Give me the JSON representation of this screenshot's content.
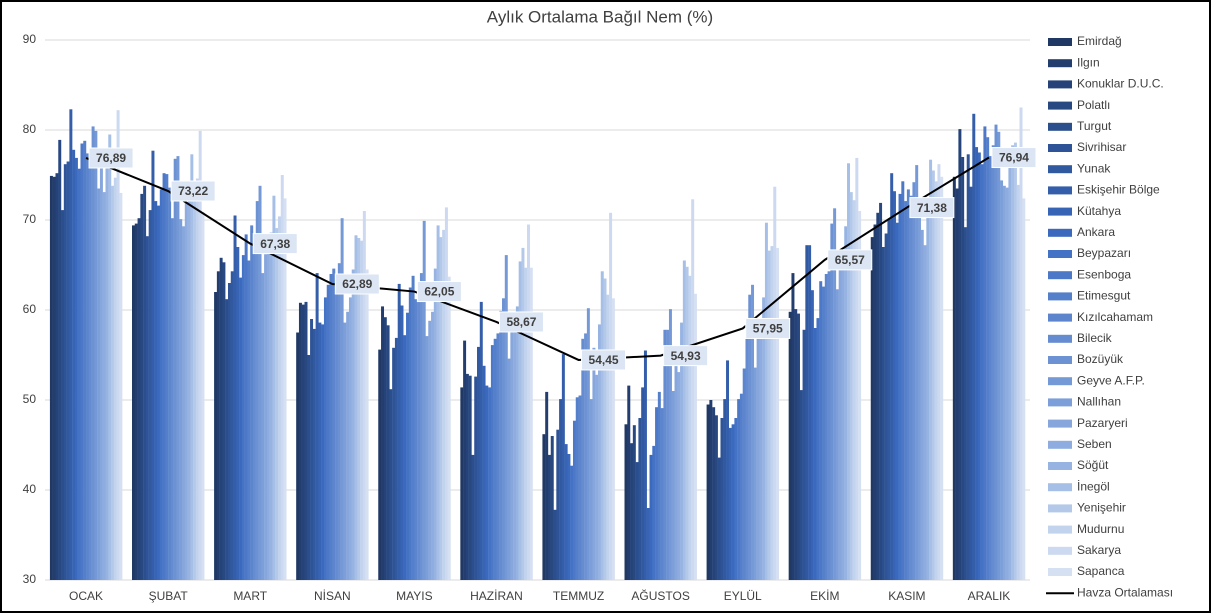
{
  "chart_data": {
    "type": "bar",
    "title": "Aylık Ortalama Bağıl Nem (%)",
    "categories": [
      "OCAK",
      "ŞUBAT",
      "MART",
      "NİSAN",
      "MAYIS",
      "HAZİRAN",
      "TEMMUZ",
      "AĞUSTOS",
      "EYLÜL",
      "EKİM",
      "KASIM",
      "ARALIK"
    ],
    "ylim": [
      30,
      90
    ],
    "yticks": [
      30,
      40,
      50,
      60,
      70,
      80,
      90
    ],
    "grid": true,
    "legend": "right",
    "series": [
      {
        "name": "Emirdağ",
        "color": "#1f3864",
        "values": [
          74.9,
          69.4,
          62.0,
          57.5,
          55.6,
          51.4,
          46.2,
          47.3,
          49.5,
          59.8,
          68.1,
          74.8
        ]
      },
      {
        "name": "Ilgın",
        "color": "#223d6e",
        "values": [
          74.8,
          69.6,
          64.3,
          60.8,
          60.4,
          56.6,
          50.9,
          51.6,
          50.0,
          64.1,
          69.5,
          73.5
        ]
      },
      {
        "name": "Konuklar D.U.C.",
        "color": "#254378",
        "values": [
          75.2,
          70.2,
          65.8,
          60.6,
          59.2,
          52.9,
          43.9,
          45.2,
          49.2,
          60.1,
          70.8,
          80.1
        ]
      },
      {
        "name": "Polatlı",
        "color": "#284882",
        "values": [
          78.9,
          72.9,
          65.3,
          60.9,
          58.3,
          52.7,
          46.0,
          47.2,
          48.3,
          59.6,
          71.9,
          77.0
        ]
      },
      {
        "name": "Turgut",
        "color": "#2b4e8c",
        "values": [
          71.1,
          73.8,
          61.2,
          55.0,
          51.2,
          43.9,
          37.8,
          43.1,
          43.6,
          51.1,
          67.0,
          69.2
        ]
      },
      {
        "name": "Sivrihisar",
        "color": "#2e5396",
        "values": [
          76.2,
          68.2,
          63.0,
          59.0,
          55.8,
          52.6,
          46.7,
          48.0,
          48.0,
          57.8,
          68.5,
          77.3
        ]
      },
      {
        "name": "Yunak",
        "color": "#3159a0",
        "values": [
          76.5,
          71.1,
          64.3,
          57.9,
          56.9,
          55.9,
          50.1,
          51.4,
          50.1,
          67.2,
          70.1,
          73.7
        ]
      },
      {
        "name": "Eskişehir Bölge",
        "color": "#345eaa",
        "values": [
          82.3,
          77.7,
          70.5,
          64.1,
          62.9,
          60.9,
          55.1,
          55.5,
          54.4,
          67.2,
          75.2,
          81.8
        ]
      },
      {
        "name": "Kütahya",
        "color": "#3764b4",
        "values": [
          77.8,
          72.1,
          67.0,
          58.6,
          60.5,
          53.8,
          45.1,
          38.0,
          46.9,
          62.2,
          73.2,
          78.1
        ]
      },
      {
        "name": "Ankara",
        "color": "#3a69be",
        "values": [
          76.9,
          71.6,
          63.6,
          58.4,
          57.2,
          51.6,
          44.0,
          43.9,
          47.3,
          58.0,
          69.7,
          77.5
        ]
      },
      {
        "name": "Beypazarı",
        "color": "#4472c4",
        "values": [
          75.7,
          73.4,
          66.1,
          61.4,
          59.7,
          51.4,
          42.7,
          44.9,
          48.0,
          59.1,
          72.9,
          76.2
        ]
      },
      {
        "name": "Esenboga",
        "color": "#4c78c7",
        "values": [
          78.5,
          75.2,
          68.4,
          62.8,
          62.5,
          56.1,
          47.7,
          49.2,
          50.1,
          63.2,
          74.3,
          80.4
        ]
      },
      {
        "name": "Etimesgut",
        "color": "#547fca",
        "values": [
          78.8,
          75.1,
          65.5,
          64.0,
          63.8,
          56.8,
          50.3,
          50.9,
          50.7,
          62.6,
          72.1,
          79.2
        ]
      },
      {
        "name": "Kızılcahamam",
        "color": "#5c85cd",
        "values": [
          77.4,
          73.6,
          69.4,
          64.6,
          61.2,
          57.4,
          50.5,
          49.1,
          53.5,
          64.0,
          73.4,
          77.1
        ]
      },
      {
        "name": "Bilecik",
        "color": "#658cd0",
        "values": [
          76.2,
          70.2,
          68.1,
          63.3,
          63.0,
          59.9,
          56.8,
          57.8,
          59.1,
          64.3,
          72.7,
          78.3
        ]
      },
      {
        "name": "Bozüyük",
        "color": "#6d92d3",
        "values": [
          80.4,
          76.8,
          72.1,
          65.2,
          64.1,
          61.3,
          57.4,
          57.8,
          61.7,
          69.6,
          74.2,
          80.6
        ]
      },
      {
        "name": "Geyve A.F.P.",
        "color": "#7599d6",
        "values": [
          79.9,
          77.1,
          73.8,
          70.2,
          69.9,
          66.1,
          60.2,
          60.1,
          62.8,
          71.3,
          76.1,
          79.8
        ]
      },
      {
        "name": "Nallıhan",
        "color": "#7d9fd9",
        "values": [
          73.5,
          70.1,
          64.1,
          58.6,
          57.1,
          54.6,
          50.1,
          51.0,
          53.6,
          62.3,
          71.3,
          74.4
        ]
      },
      {
        "name": "Pazaryeri",
        "color": "#86a6dc",
        "values": [
          76.1,
          69.3,
          66.2,
          59.8,
          58.8,
          57.6,
          55.8,
          55.4,
          58.1,
          65.5,
          68.9,
          73.8
        ]
      },
      {
        "name": "Seben",
        "color": "#8eacdf",
        "values": [
          73.1,
          72.0,
          66.4,
          61.4,
          59.8,
          57.6,
          52.8,
          53.1,
          56.8,
          64.6,
          67.2,
          73.6
        ]
      },
      {
        "name": "Söğüt",
        "color": "#96b3e2",
        "values": [
          75.9,
          72.6,
          68.6,
          64.5,
          64.6,
          60.4,
          58.4,
          58.6,
          61.4,
          69.3,
          71.0,
          76.2
        ]
      },
      {
        "name": "İnegöl",
        "color": "#a6bfe6",
        "values": [
          79.5,
          77.3,
          72.7,
          68.3,
          69.4,
          65.4,
          64.3,
          65.5,
          69.7,
          76.3,
          76.7,
          78.3
        ]
      },
      {
        "name": "Yenişehir",
        "color": "#b4c9ea",
        "values": [
          73.8,
          72.2,
          69.1,
          68.0,
          68.1,
          66.9,
          63.5,
          64.8,
          66.6,
          73.1,
          75.5,
          78.6
        ]
      },
      {
        "name": "Mudurnu",
        "color": "#c2d3ee",
        "values": [
          74.7,
          74.6,
          70.4,
          67.7,
          68.9,
          64.7,
          61.7,
          63.8,
          67.1,
          72.2,
          74.3,
          73.9
        ]
      },
      {
        "name": "Sakarya",
        "color": "#ccd9f0",
        "values": [
          82.2,
          79.9,
          75.0,
          71.0,
          71.4,
          69.5,
          70.8,
          72.3,
          73.7,
          76.9,
          76.2,
          82.5
        ]
      },
      {
        "name": "Sapanca",
        "color": "#d6e0f3",
        "values": [
          73.0,
          70.9,
          72.4,
          64.5,
          63.7,
          64.7,
          61.3,
          61.8,
          66.9,
          71.0,
          74.8,
          72.4
        ]
      },
      {
        "name": "Havza Ortalaması",
        "type": "line",
        "color": "#000000",
        "values": [
          76.89,
          73.22,
          67.38,
          62.89,
          62.05,
          58.67,
          54.45,
          54.93,
          57.95,
          65.57,
          71.38,
          76.94
        ],
        "value_labels": [
          "76,89",
          "73,22",
          "67,38",
          "62,89",
          "62,05",
          "58,67",
          "54,45",
          "54,93",
          "57,95",
          "65,57",
          "71,38",
          "76,94"
        ]
      }
    ]
  }
}
